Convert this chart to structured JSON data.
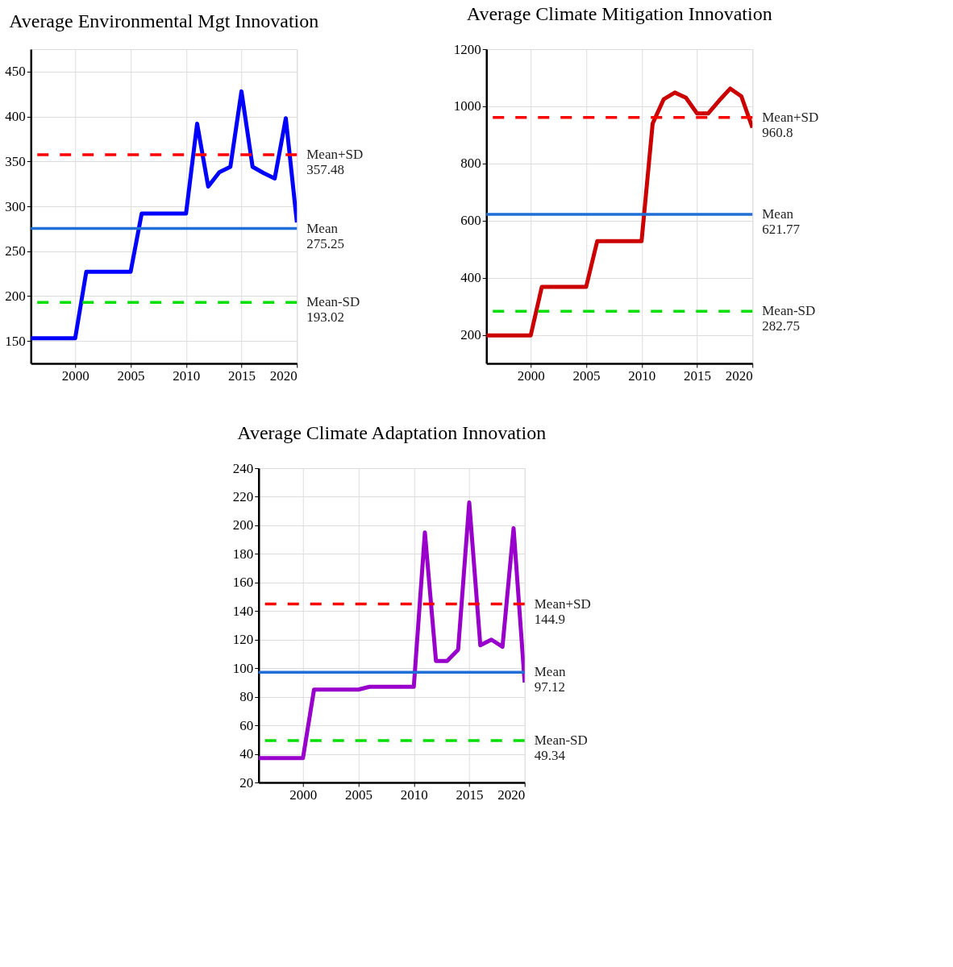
{
  "chart_data": [
    {
      "type": "line",
      "title": "Average Environmental Mgt Innovation",
      "x": [
        1996,
        1997,
        1998,
        1999,
        2000,
        2001,
        2002,
        2003,
        2004,
        2005,
        2006,
        2007,
        2008,
        2009,
        2010,
        2011,
        2012,
        2013,
        2014,
        2015,
        2016,
        2017,
        2018,
        2019,
        2020
      ],
      "series": [
        {
          "color": "#0000ff",
          "values": [
            153,
            153,
            153,
            153,
            153,
            227,
            227,
            227,
            227,
            227,
            292,
            292,
            292,
            292,
            292,
            392,
            322,
            338,
            344,
            428,
            344,
            337,
            331,
            398,
            282
          ]
        }
      ],
      "xlim": [
        1996,
        2020
      ],
      "xticks": [
        2000,
        2005,
        2010,
        2015,
        2020
      ],
      "ylim": [
        125,
        475
      ],
      "yticks": [
        150,
        200,
        250,
        300,
        350,
        400,
        450
      ],
      "grid": true,
      "ref_lines": [
        {
          "axis": "y",
          "value": 357.48,
          "label": "Mean+SD\n357.48",
          "color": "#ff0000",
          "line_style": "dashed"
        },
        {
          "axis": "y",
          "value": 275.25,
          "label": "Mean\n275.25",
          "color": "#1f6fd6",
          "line_style": "solid"
        },
        {
          "axis": "y",
          "value": 193.02,
          "label": "Mean-SD\n193.02",
          "color": "#00e000",
          "line_style": "dashed"
        }
      ]
    },
    {
      "type": "line",
      "title": "Average Climate Mitigation Innovation",
      "x": [
        1996,
        1997,
        1998,
        1999,
        2000,
        2001,
        2002,
        2003,
        2004,
        2005,
        2006,
        2007,
        2008,
        2009,
        2010,
        2011,
        2012,
        2013,
        2014,
        2015,
        2016,
        2017,
        2018,
        2019,
        2020
      ],
      "series": [
        {
          "color": "#cc0000",
          "values": [
            198,
            198,
            198,
            198,
            198,
            368,
            368,
            368,
            368,
            368,
            528,
            528,
            528,
            528,
            528,
            940,
            1025,
            1048,
            1030,
            975,
            975,
            1020,
            1062,
            1035,
            925
          ]
        }
      ],
      "xlim": [
        1996,
        2020
      ],
      "xticks": [
        2000,
        2005,
        2010,
        2015,
        2020
      ],
      "ylim": [
        100,
        1200
      ],
      "yticks": [
        200,
        400,
        600,
        800,
        1000,
        1200
      ],
      "grid": true,
      "ref_lines": [
        {
          "axis": "y",
          "value": 960.8,
          "label": "Mean+SD\n960.8",
          "color": "#ff0000",
          "line_style": "dashed"
        },
        {
          "axis": "y",
          "value": 621.77,
          "label": "Mean\n621.77",
          "color": "#1f6fd6",
          "line_style": "solid"
        },
        {
          "axis": "y",
          "value": 282.75,
          "label": "Mean-SD\n282.75",
          "color": "#00e000",
          "line_style": "dashed"
        }
      ]
    },
    {
      "type": "line",
      "title": "Average Climate Adaptation Innovation",
      "x": [
        1996,
        1997,
        1998,
        1999,
        2000,
        2001,
        2002,
        2003,
        2004,
        2005,
        2006,
        2007,
        2008,
        2009,
        2010,
        2011,
        2012,
        2013,
        2014,
        2015,
        2016,
        2017,
        2018,
        2019,
        2020
      ],
      "series": [
        {
          "color": "#9900cc",
          "values": [
            37,
            37,
            37,
            37,
            37,
            85,
            85,
            85,
            85,
            85,
            87,
            87,
            87,
            87,
            87,
            195,
            105,
            105,
            113,
            216,
            116,
            120,
            115,
            198,
            90
          ]
        }
      ],
      "xlim": [
        1996,
        2020
      ],
      "xticks": [
        2000,
        2005,
        2010,
        2015,
        2020
      ],
      "ylim": [
        20,
        240
      ],
      "yticks": [
        20,
        40,
        60,
        80,
        100,
        120,
        140,
        160,
        180,
        200,
        220,
        240
      ],
      "grid": true,
      "ref_lines": [
        {
          "axis": "y",
          "value": 144.9,
          "label": "Mean+SD\n144.9",
          "color": "#ff0000",
          "line_style": "dashed"
        },
        {
          "axis": "y",
          "value": 97.12,
          "label": "Mean\n97.12",
          "color": "#1f6fd6",
          "line_style": "solid"
        },
        {
          "axis": "y",
          "value": 49.34,
          "label": "Mean-SD\n49.34",
          "color": "#00e000",
          "line_style": "dashed"
        }
      ]
    }
  ]
}
